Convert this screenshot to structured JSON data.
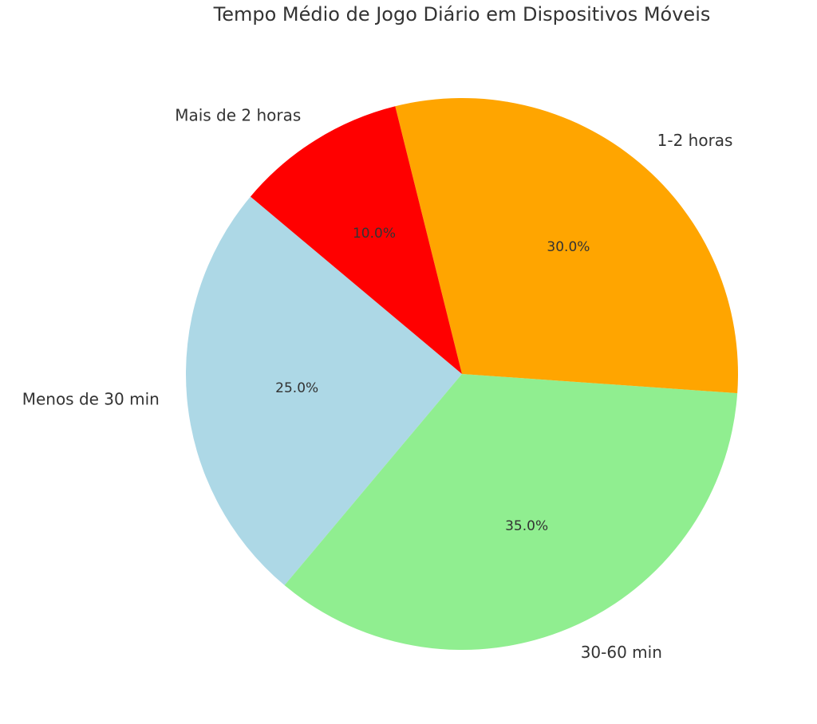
{
  "chart_data": {
    "type": "pie",
    "title": "Tempo Médio de Jogo Diário em Dispositivos Móveis",
    "categories": [
      "Menos de 30 min",
      "30-60 min",
      "1-2 horas",
      "Mais de 2 horas"
    ],
    "values": [
      25,
      35,
      30,
      10
    ],
    "value_labels": [
      "25.0%",
      "35.0%",
      "30.0%",
      "10.0%"
    ],
    "colors": [
      "#add8e6",
      "#90ee90",
      "#ffa500",
      "#ff0000"
    ]
  }
}
